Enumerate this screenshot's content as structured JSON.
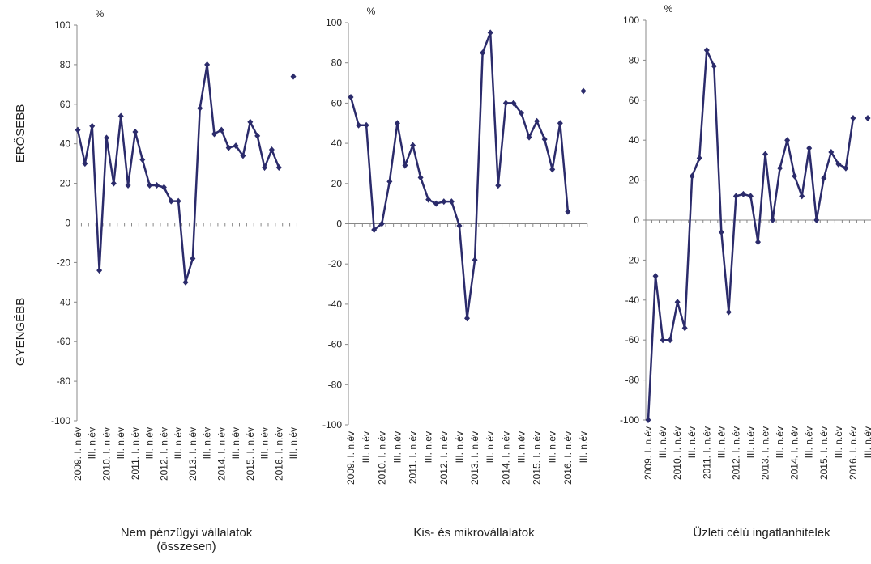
{
  "side_labels": [
    "ERŐSEBB",
    "GYENGÉBB"
  ],
  "chart_data": [
    {
      "type": "line",
      "title": "Nem pénzügyi vállalatok (összesen)",
      "ylabel": "%",
      "categories": [
        "2009. I. n.év",
        null,
        "III. n.év",
        null,
        "2010. I. n.év",
        null,
        "III. n.év",
        null,
        "2011. I. n.év",
        null,
        "III. n.év",
        null,
        "2012. I. n.év",
        null,
        "III. n.év",
        null,
        "2013. I. n.év",
        null,
        "III. n.év",
        null,
        "2014. I. n.év",
        null,
        "III. n.év",
        null,
        "2015. I. n.év",
        null,
        "III. n.év",
        null,
        "2016. I. n.év",
        null,
        "III. n.év"
      ],
      "series": [
        {
          "color": "#2b2b6b",
          "values": [
            47,
            30,
            49,
            -24,
            43,
            20,
            54,
            19,
            46,
            32,
            19,
            19,
            18,
            11,
            11,
            -30,
            -18,
            58,
            80,
            45,
            47,
            38,
            39,
            34,
            51,
            44,
            28,
            37,
            28,
            null,
            74
          ]
        }
      ],
      "ylim": [
        -100,
        100
      ],
      "yticks": [
        -100,
        -80,
        -60,
        -40,
        -20,
        0,
        20,
        40,
        60,
        80,
        100
      ]
    },
    {
      "type": "line",
      "title": "Kis- és mikrovállalatok",
      "ylabel": "%",
      "categories": [
        "2009. I. n.év",
        null,
        "III. n.év",
        null,
        "2010. I. n.év",
        null,
        "III. n.év",
        null,
        "2011. I. n.év",
        null,
        "III. n.év",
        null,
        "2012. I. n.év",
        null,
        "III. n.év",
        null,
        "2013. I. n.év",
        null,
        "III. n.év",
        null,
        "2014. I. n.év",
        null,
        "III. n.év",
        null,
        "2015. I. n.év",
        null,
        "III. n.év",
        null,
        "2016. I. n.év",
        null,
        "III. n.év"
      ],
      "series": [
        {
          "color": "#2b2b6b",
          "values": [
            63,
            49,
            49,
            -3,
            0,
            21,
            50,
            29,
            39,
            23,
            12,
            10,
            11,
            11,
            -1,
            -47,
            -18,
            85,
            95,
            19,
            60,
            60,
            55,
            43,
            51,
            42,
            27,
            50,
            6,
            null,
            66
          ]
        }
      ],
      "ylim": [
        -100,
        100
      ],
      "yticks": [
        -100,
        -80,
        -60,
        -40,
        -20,
        0,
        20,
        40,
        60,
        80,
        100
      ]
    },
    {
      "type": "line",
      "title": "Üzleti célú ingatlanhitelek",
      "ylabel": "%",
      "categories": [
        "2009. I. n.év",
        null,
        "III. n.év",
        null,
        "2010. I. n.év",
        null,
        "III. n.év",
        null,
        "2011. I. n.év",
        null,
        "III. n.év",
        null,
        "2012. I. n.év",
        null,
        "III. n.év",
        null,
        "2013. I. n.év",
        null,
        "III. n.év",
        null,
        "2014. I. n.év",
        null,
        "III. n.év",
        null,
        "2015. I. n.év",
        null,
        "III. n.év",
        null,
        "2016. I. n.év",
        null,
        "III. n.év"
      ],
      "series": [
        {
          "color": "#2b2b6b",
          "values": [
            -100,
            -28,
            -60,
            -60,
            -41,
            -54,
            22,
            31,
            85,
            77,
            -6,
            -46,
            12,
            13,
            12,
            -11,
            33,
            0,
            26,
            40,
            22,
            12,
            36,
            0,
            21,
            34,
            28,
            26,
            51,
            null,
            51
          ]
        }
      ],
      "ylim": [
        -100,
        100
      ],
      "yticks": [
        -100,
        -80,
        -60,
        -40,
        -20,
        0,
        20,
        40,
        60,
        80,
        100
      ]
    }
  ]
}
